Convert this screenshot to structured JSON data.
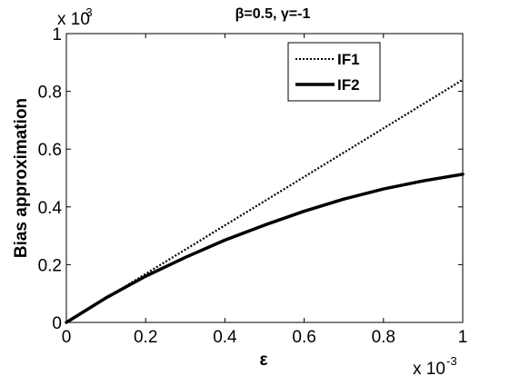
{
  "chart_data": {
    "type": "line",
    "title": "β=0.5, γ=-1",
    "xlabel": "ε",
    "ylabel": "Bias approximation",
    "xlim": [
      0,
      1
    ],
    "ylim": [
      0,
      1
    ],
    "x_multiplier": "x 10",
    "x_multiplier_exp": "-3",
    "y_multiplier": "x 10",
    "y_multiplier_exp": "-3",
    "xticks": [
      0,
      0.2,
      0.4,
      0.6,
      0.8,
      1
    ],
    "xtick_labels": [
      "0",
      "0.2",
      "0.4",
      "0.6",
      "0.8",
      "1"
    ],
    "yticks": [
      0,
      0.2,
      0.4,
      0.6,
      0.8,
      1
    ],
    "ytick_labels": [
      "0",
      "0.2",
      "0.4",
      "0.6",
      "0.8",
      "1"
    ],
    "grid": false,
    "legend_position": "top-right",
    "series": [
      {
        "name": "IF1",
        "style": "dotted",
        "color": "#000000",
        "x": [
          0,
          0.2,
          0.4,
          0.6,
          0.8,
          1
        ],
        "y": [
          0,
          0.168,
          0.336,
          0.504,
          0.672,
          0.84
        ]
      },
      {
        "name": "IF2",
        "style": "solid",
        "color": "#000000",
        "x": [
          0,
          0.1,
          0.2,
          0.3,
          0.4,
          0.5,
          0.6,
          0.7,
          0.8,
          0.9,
          1
        ],
        "y": [
          0,
          0.085,
          0.16,
          0.225,
          0.285,
          0.337,
          0.385,
          0.427,
          0.462,
          0.49,
          0.513
        ]
      }
    ]
  }
}
